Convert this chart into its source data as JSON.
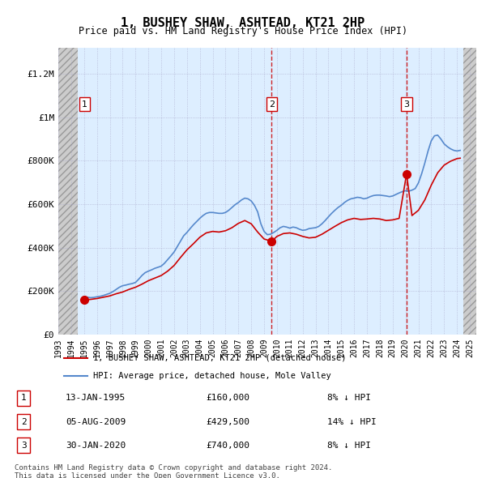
{
  "title": "1, BUSHEY SHAW, ASHTEAD, KT21 2HP",
  "subtitle": "Price paid vs. HM Land Registry's House Price Index (HPI)",
  "ylabel_ticks": [
    "£0",
    "£200K",
    "£400K",
    "£600K",
    "£800K",
    "£1M",
    "£1.2M"
  ],
  "ytick_values": [
    0,
    200000,
    400000,
    600000,
    800000,
    1000000,
    1200000
  ],
  "ylim": [
    0,
    1320000
  ],
  "xlim_start": 1993.0,
  "xlim_end": 2025.5,
  "hatch_left_end": 1994.5,
  "hatch_right_start": 2024.5,
  "transactions": [
    {
      "num": 1,
      "date": "13-JAN-1995",
      "price": 160000,
      "year": 1995.04,
      "label": "£160,000",
      "pct": "8% ↓ HPI"
    },
    {
      "num": 2,
      "date": "05-AUG-2009",
      "price": 429500,
      "year": 2009.59,
      "label": "£429,500",
      "pct": "14% ↓ HPI"
    },
    {
      "num": 3,
      "date": "30-JAN-2020",
      "price": 740000,
      "year": 2020.08,
      "label": "£740,000",
      "pct": "8% ↓ HPI"
    }
  ],
  "legend_line1_label": "1, BUSHEY SHAW, ASHTEAD, KT21 2HP (detached house)",
  "legend_line2_label": "HPI: Average price, detached house, Mole Valley",
  "footnote1": "Contains HM Land Registry data © Crown copyright and database right 2024.",
  "footnote2": "This data is licensed under the Open Government Licence v3.0.",
  "line_red_color": "#cc0000",
  "line_blue_color": "#5588cc",
  "hatch_color": "#aaaaaa",
  "grid_color": "#aaaacc",
  "hpi_data": {
    "years": [
      1995.04,
      1995.25,
      1995.5,
      1995.75,
      1996.0,
      1996.25,
      1996.5,
      1996.75,
      1997.0,
      1997.25,
      1997.5,
      1997.75,
      1998.0,
      1998.25,
      1998.5,
      1998.75,
      1999.0,
      1999.25,
      1999.5,
      1999.75,
      2000.0,
      2000.25,
      2000.5,
      2000.75,
      2001.0,
      2001.25,
      2001.5,
      2001.75,
      2002.0,
      2002.25,
      2002.5,
      2002.75,
      2003.0,
      2003.25,
      2003.5,
      2003.75,
      2004.0,
      2004.25,
      2004.5,
      2004.75,
      2005.0,
      2005.25,
      2005.5,
      2005.75,
      2006.0,
      2006.25,
      2006.5,
      2006.75,
      2007.0,
      2007.25,
      2007.5,
      2007.75,
      2008.0,
      2008.25,
      2008.5,
      2008.75,
      2009.0,
      2009.25,
      2009.5,
      2009.75,
      2010.0,
      2010.25,
      2010.5,
      2010.75,
      2011.0,
      2011.25,
      2011.5,
      2011.75,
      2012.0,
      2012.25,
      2012.5,
      2012.75,
      2013.0,
      2013.25,
      2013.5,
      2013.75,
      2014.0,
      2014.25,
      2014.5,
      2014.75,
      2015.0,
      2015.25,
      2015.5,
      2015.75,
      2016.0,
      2016.25,
      2016.5,
      2016.75,
      2017.0,
      2017.25,
      2017.5,
      2017.75,
      2018.0,
      2018.25,
      2018.5,
      2018.75,
      2019.0,
      2019.25,
      2019.5,
      2019.75,
      2020.0,
      2020.25,
      2020.5,
      2020.75,
      2021.0,
      2021.25,
      2021.5,
      2021.75,
      2022.0,
      2022.25,
      2022.5,
      2022.75,
      2023.0,
      2023.25,
      2023.5,
      2023.75,
      2024.0,
      2024.25
    ],
    "values": [
      173913,
      172000,
      170000,
      171000,
      174000,
      176000,
      180000,
      185000,
      190000,
      198000,
      208000,
      218000,
      225000,
      228000,
      232000,
      235000,
      240000,
      255000,
      272000,
      285000,
      292000,
      298000,
      305000,
      310000,
      315000,
      328000,
      345000,
      362000,
      380000,
      405000,
      430000,
      455000,
      470000,
      488000,
      505000,
      520000,
      535000,
      548000,
      558000,
      562000,
      562000,
      560000,
      558000,
      558000,
      562000,
      572000,
      585000,
      598000,
      608000,
      620000,
      628000,
      625000,
      615000,
      595000,
      565000,
      510000,
      475000,
      460000,
      462000,
      470000,
      480000,
      492000,
      498000,
      495000,
      490000,
      495000,
      492000,
      485000,
      480000,
      482000,
      488000,
      490000,
      492000,
      498000,
      510000,
      525000,
      542000,
      558000,
      572000,
      585000,
      595000,
      608000,
      618000,
      625000,
      628000,
      632000,
      630000,
      625000,
      628000,
      635000,
      640000,
      642000,
      642000,
      640000,
      638000,
      635000,
      638000,
      645000,
      652000,
      658000,
      662000,
      660000,
      665000,
      672000,
      698000,
      740000,
      790000,
      845000,
      892000,
      915000,
      918000,
      900000,
      878000,
      865000,
      855000,
      848000,
      845000,
      848000
    ]
  },
  "price_data": {
    "years": [
      1995.04,
      1995.5,
      1996.0,
      1996.5,
      1997.0,
      1997.5,
      1998.0,
      1998.5,
      1999.0,
      1999.5,
      2000.0,
      2000.5,
      2001.0,
      2001.5,
      2002.0,
      2002.5,
      2003.0,
      2003.5,
      2004.0,
      2004.5,
      2005.0,
      2005.5,
      2006.0,
      2006.5,
      2007.0,
      2007.5,
      2008.0,
      2008.5,
      2009.0,
      2009.59,
      2009.75,
      2010.0,
      2010.5,
      2011.0,
      2011.5,
      2012.0,
      2012.5,
      2013.0,
      2013.5,
      2014.0,
      2014.5,
      2015.0,
      2015.5,
      2016.0,
      2016.5,
      2017.0,
      2017.5,
      2018.0,
      2018.5,
      2019.0,
      2019.5,
      2020.08,
      2020.5,
      2021.0,
      2021.5,
      2022.0,
      2022.5,
      2023.0,
      2023.5,
      2024.0,
      2024.25
    ],
    "values": [
      160000,
      162000,
      166000,
      172000,
      178000,
      188000,
      196000,
      208000,
      218000,
      232000,
      248000,
      260000,
      272000,
      292000,
      318000,
      355000,
      390000,
      418000,
      448000,
      468000,
      475000,
      472000,
      478000,
      492000,
      512000,
      525000,
      510000,
      472000,
      440000,
      429500,
      438000,
      452000,
      465000,
      468000,
      462000,
      452000,
      445000,
      448000,
      462000,
      480000,
      498000,
      515000,
      528000,
      535000,
      530000,
      532000,
      535000,
      532000,
      525000,
      528000,
      535000,
      740000,
      548000,
      572000,
      620000,
      688000,
      745000,
      780000,
      798000,
      810000,
      812000
    ]
  }
}
